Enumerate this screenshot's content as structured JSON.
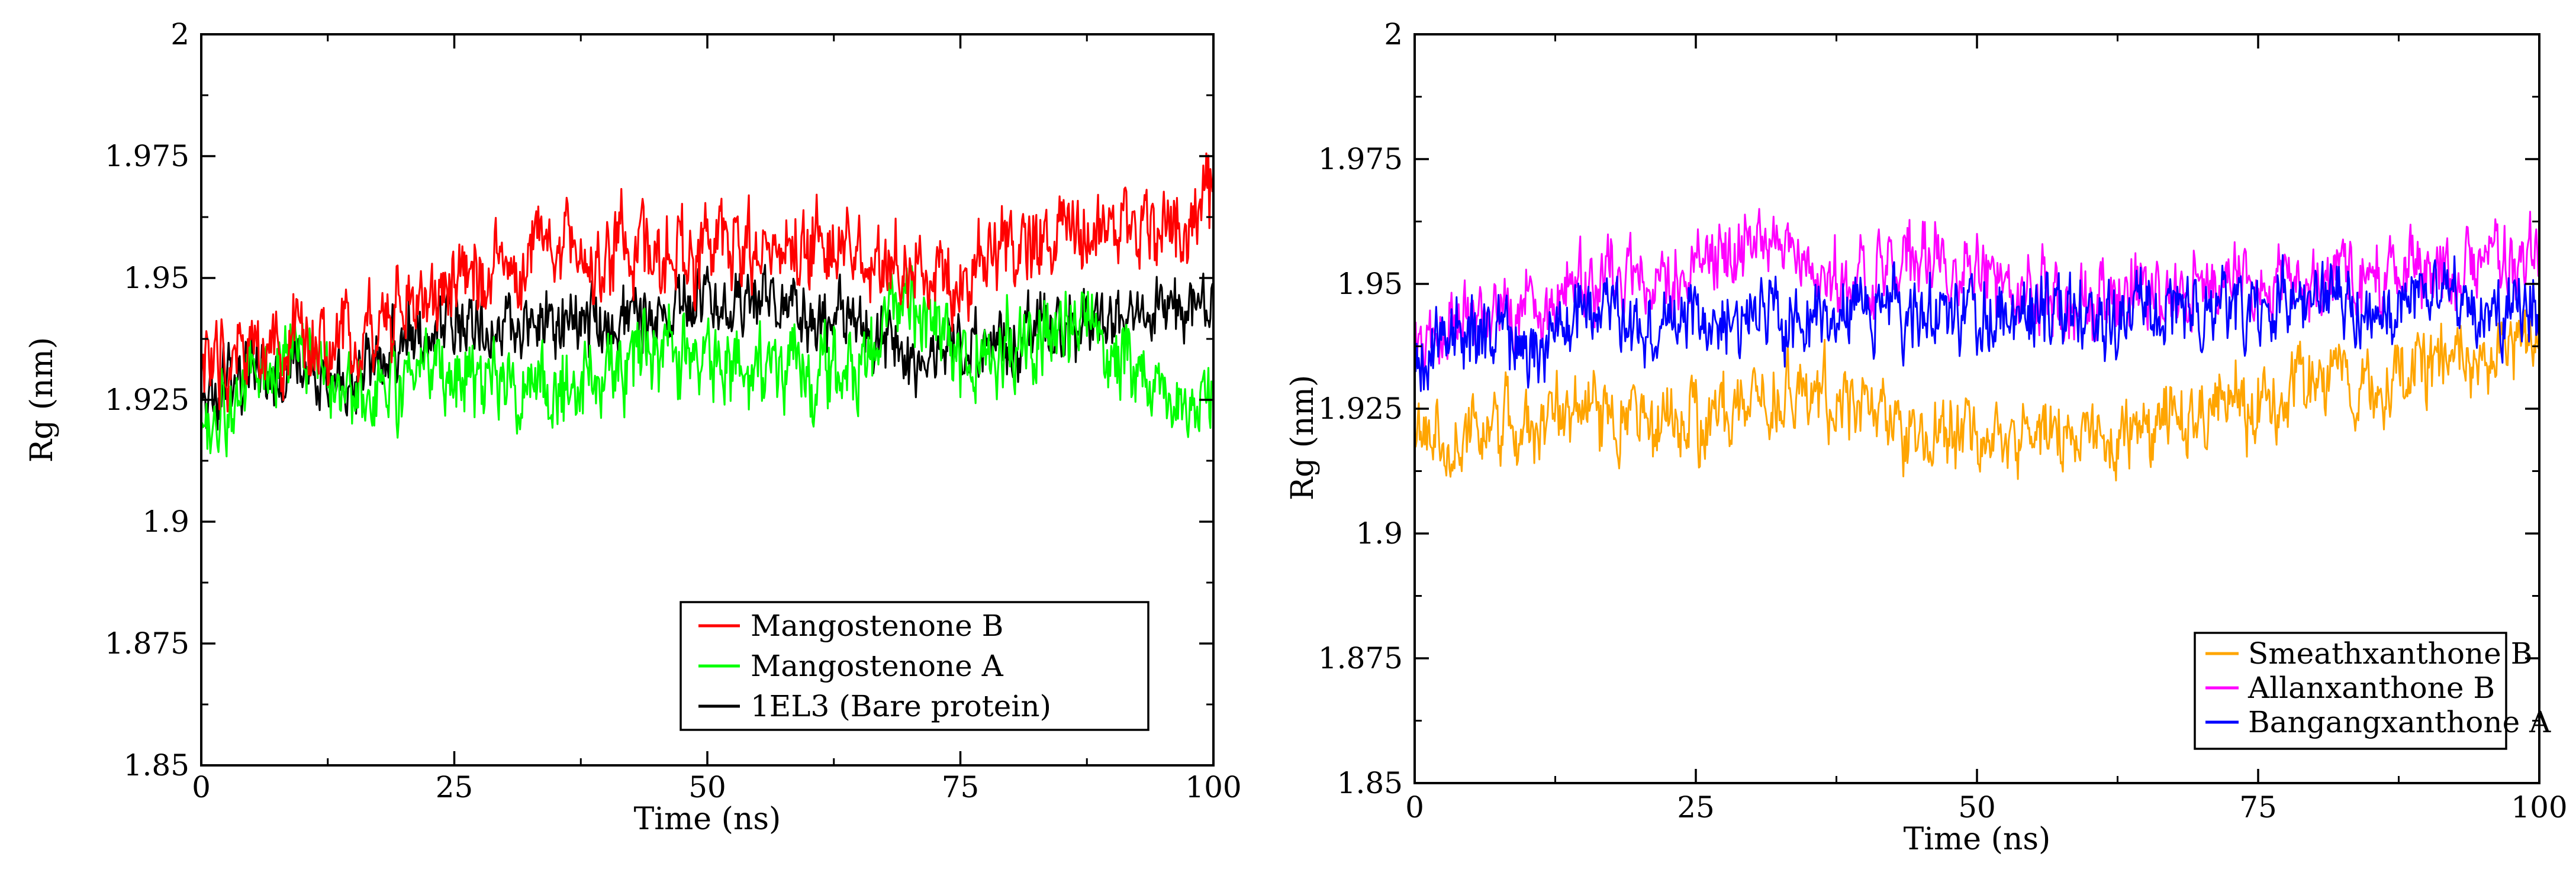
{
  "chart_data": [
    {
      "type": "line",
      "title": "",
      "xlabel": "Time (ns)",
      "ylabel": "Rg (nm)",
      "xlim": [
        0,
        100
      ],
      "ylim": [
        1.85,
        2.0
      ],
      "xticks": [
        0,
        25,
        50,
        75,
        100
      ],
      "xtick_labels": [
        "0",
        "25",
        "50",
        "75",
        "100"
      ],
      "yticks": [
        1.85,
        1.875,
        1.9,
        1.925,
        1.95,
        1.975,
        2.0
      ],
      "ytick_labels": [
        "1.85",
        "1.875",
        "1.9",
        "1.925",
        "1.95",
        "1.975",
        "2"
      ],
      "grid": false,
      "legend_position": "bottom-right",
      "legend_draw_order": [
        "1EL3 (Bare protein)",
        "Mangostenone A",
        "Mangostenone B"
      ],
      "series": [
        {
          "name": "Mangostenone B",
          "color": "#ff0000",
          "x": [
            0,
            5,
            10,
            15,
            20,
            25,
            30,
            35,
            40,
            45,
            50,
            55,
            60,
            65,
            70,
            75,
            80,
            85,
            90,
            95,
            100
          ],
          "y": [
            1.93,
            1.935,
            1.935,
            1.938,
            1.945,
            1.95,
            1.952,
            1.958,
            1.955,
            1.955,
            1.955,
            1.956,
            1.957,
            1.955,
            1.95,
            1.95,
            1.956,
            1.958,
            1.96,
            1.962,
            1.965
          ],
          "noise": 0.0075
        },
        {
          "name": "Mangostenone A",
          "color": "#00ff00",
          "x": [
            0,
            5,
            10,
            15,
            20,
            25,
            30,
            35,
            40,
            45,
            50,
            55,
            60,
            65,
            70,
            75,
            80,
            85,
            90,
            95,
            100
          ],
          "y": [
            1.92,
            1.928,
            1.935,
            1.925,
            1.928,
            1.93,
            1.93,
            1.928,
            1.93,
            1.933,
            1.935,
            1.932,
            1.93,
            1.932,
            1.945,
            1.935,
            1.935,
            1.94,
            1.938,
            1.925,
            1.925
          ],
          "noise": 0.0075
        },
        {
          "name": "1EL3 (Bare protein)",
          "color": "#000000",
          "x": [
            0,
            5,
            10,
            15,
            20,
            25,
            30,
            35,
            40,
            45,
            50,
            55,
            60,
            65,
            70,
            75,
            80,
            85,
            90,
            95,
            100
          ],
          "y": [
            1.925,
            1.93,
            1.93,
            1.928,
            1.938,
            1.94,
            1.94,
            1.942,
            1.94,
            1.943,
            1.945,
            1.945,
            1.942,
            1.94,
            1.932,
            1.935,
            1.938,
            1.94,
            1.942,
            1.943,
            1.945
          ],
          "noise": 0.006
        }
      ]
    },
    {
      "type": "line",
      "title": "",
      "xlabel": "Time (ns)",
      "ylabel": "Rg (nm)",
      "xlim": [
        0,
        100
      ],
      "ylim": [
        1.85,
        2.0
      ],
      "xticks": [
        0,
        25,
        50,
        75,
        100
      ],
      "xtick_labels": [
        "0",
        "25",
        "50",
        "75",
        "100"
      ],
      "yticks": [
        1.85,
        1.875,
        1.9,
        1.925,
        1.95,
        1.975,
        2.0
      ],
      "ytick_labels": [
        "1.85",
        "1.875",
        "1.9",
        "1.925",
        "1.95",
        "1.975",
        "2"
      ],
      "grid": false,
      "legend_position": "bottom-right",
      "legend_draw_order": [
        "Smeathxanthone B",
        "Allanxanthone B",
        "Bangangxanthone A"
      ],
      "series": [
        {
          "name": "Smeathxanthone B",
          "color": "#ffa500",
          "x": [
            0,
            5,
            10,
            15,
            20,
            25,
            30,
            35,
            40,
            45,
            50,
            55,
            60,
            65,
            70,
            75,
            80,
            85,
            90,
            95,
            100
          ],
          "y": [
            1.92,
            1.92,
            1.922,
            1.926,
            1.922,
            1.922,
            1.927,
            1.93,
            1.925,
            1.92,
            1.92,
            1.922,
            1.918,
            1.92,
            1.925,
            1.926,
            1.93,
            1.928,
            1.935,
            1.935,
            1.938
          ],
          "noise": 0.0065
        },
        {
          "name": "Allanxanthone B",
          "color": "#ff00ff",
          "x": [
            0,
            5,
            10,
            15,
            20,
            25,
            30,
            35,
            40,
            45,
            50,
            55,
            60,
            65,
            70,
            75,
            80,
            85,
            90,
            95,
            100
          ],
          "y": [
            1.935,
            1.945,
            1.945,
            1.95,
            1.95,
            1.955,
            1.958,
            1.955,
            1.95,
            1.955,
            1.952,
            1.948,
            1.945,
            1.948,
            1.95,
            1.95,
            1.95,
            1.952,
            1.95,
            1.955,
            1.955
          ],
          "noise": 0.0065
        },
        {
          "name": "Bangangxanthone A",
          "color": "#0000ff",
          "x": [
            0,
            5,
            10,
            15,
            20,
            25,
            30,
            35,
            40,
            45,
            50,
            55,
            60,
            65,
            70,
            75,
            80,
            85,
            90,
            95,
            100
          ],
          "y": [
            1.935,
            1.94,
            1.938,
            1.945,
            1.942,
            1.943,
            1.943,
            1.945,
            1.945,
            1.943,
            1.944,
            1.945,
            1.943,
            1.945,
            1.945,
            1.945,
            1.948,
            1.945,
            1.948,
            1.945,
            1.945
          ],
          "noise": 0.0065
        }
      ]
    }
  ]
}
